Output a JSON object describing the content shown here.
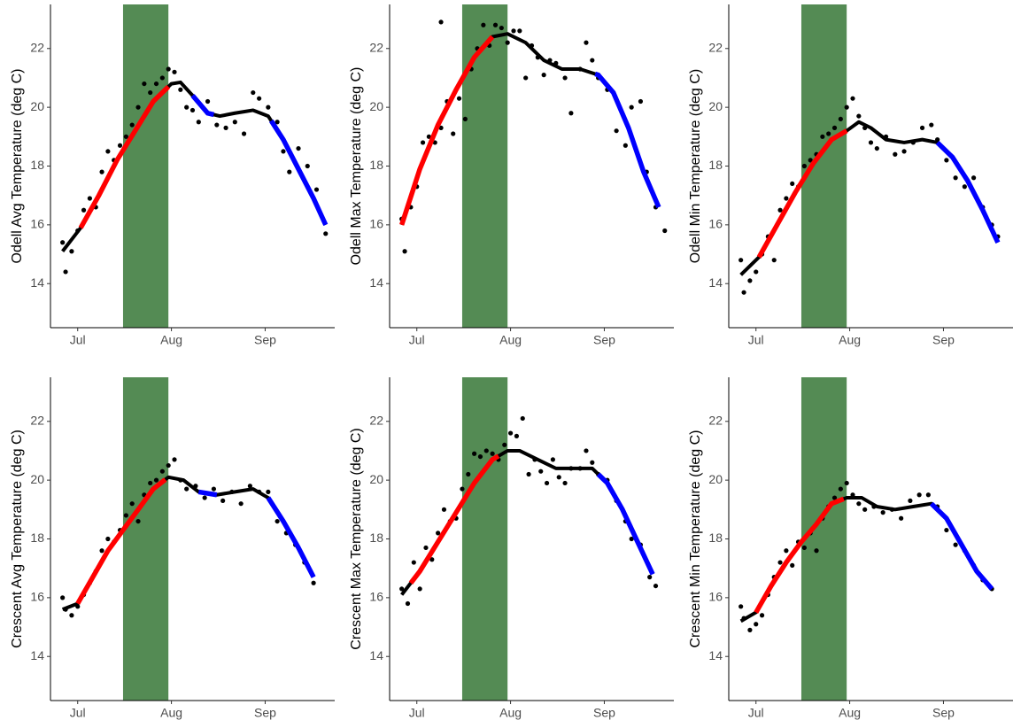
{
  "chart_data": [
    {
      "type": "scatter",
      "y_label": "Odell Avg Temperature (deg C)",
      "x": [
        177,
        178,
        180,
        182,
        184,
        186,
        188,
        190,
        192,
        194,
        196,
        198,
        200,
        202,
        204,
        206,
        208,
        210,
        212,
        214,
        216,
        218,
        220,
        222,
        225,
        228,
        231,
        234,
        237,
        240,
        242,
        245,
        248,
        250,
        252,
        255,
        258,
        261,
        264
      ],
      "values": [
        15.4,
        14.4,
        15.1,
        15.8,
        16.5,
        16.9,
        16.6,
        17.8,
        18.5,
        18.2,
        18.7,
        19.0,
        19.4,
        20.0,
        20.8,
        20.5,
        20.8,
        21.0,
        21.3,
        21.2,
        20.6,
        20.0,
        19.9,
        19.5,
        20.2,
        19.4,
        19.3,
        19.5,
        19.1,
        20.5,
        20.3,
        20.0,
        19.5,
        18.5,
        17.8,
        18.6,
        18.0,
        17.2,
        15.7
      ],
      "color": "#000000",
      "smooth": {
        "x": [
          177,
          183,
          189,
          195,
          201,
          207,
          213,
          216,
          220,
          225,
          229,
          234,
          240,
          245,
          250,
          255,
          260,
          264
        ],
        "values": [
          15.1,
          15.9,
          17.0,
          18.2,
          19.2,
          20.2,
          20.8,
          20.85,
          20.4,
          19.8,
          19.7,
          19.8,
          19.9,
          19.7,
          18.9,
          17.9,
          16.9,
          16.0
        ],
        "color": "#000000"
      },
      "highlights": [
        {
          "xlim": [
            183,
            212
          ],
          "color": "#ff0000"
        },
        {
          "xlim": [
            220,
            227
          ],
          "color": "#0000ff"
        },
        {
          "xlim": [
            246,
            264
          ],
          "color": "#0000ff"
        }
      ],
      "band": {
        "xlim": [
          197,
          212
        ],
        "color": "#548b54"
      },
      "xlim": [
        173,
        267
      ],
      "ylim": [
        12.5,
        23.5
      ],
      "xticks": [
        {
          "value": 182,
          "label": "Jul"
        },
        {
          "value": 213,
          "label": "Aug"
        },
        {
          "value": 244,
          "label": "Sep"
        }
      ],
      "yticks": [
        14,
        16,
        18,
        20,
        22
      ]
    },
    {
      "type": "scatter",
      "y_label": "Odell Max Temperature (deg C)",
      "x": [
        177,
        178,
        180,
        182,
        184,
        186,
        188,
        190,
        190,
        192,
        194,
        196,
        198,
        200,
        202,
        204,
        206,
        208,
        210,
        212,
        214,
        216,
        218,
        220,
        222,
        224,
        226,
        228,
        231,
        233,
        236,
        238,
        240,
        242,
        245,
        248,
        251,
        253,
        256,
        258,
        261,
        264
      ],
      "values": [
        16.2,
        15.1,
        16.6,
        17.3,
        18.8,
        19.0,
        18.8,
        19.3,
        22.9,
        20.2,
        19.1,
        20.3,
        19.6,
        21.3,
        22.0,
        22.8,
        22.1,
        22.8,
        22.7,
        22.2,
        22.6,
        22.6,
        21.0,
        22.1,
        21.7,
        21.1,
        21.6,
        21.5,
        21.0,
        19.8,
        21.3,
        22.2,
        21.6,
        21.0,
        20.6,
        19.2,
        18.7,
        20.0,
        20.2,
        17.8,
        16.6,
        15.8
      ],
      "color": "#000000",
      "smooth": {
        "x": [
          177,
          183,
          189,
          195,
          201,
          207,
          212,
          218,
          224,
          230,
          236,
          242,
          247,
          252,
          257,
          262
        ],
        "values": [
          16.0,
          17.9,
          19.4,
          20.6,
          21.7,
          22.4,
          22.5,
          22.2,
          21.6,
          21.3,
          21.3,
          21.1,
          20.5,
          19.3,
          17.8,
          16.6
        ],
        "color": "#000000"
      },
      "highlights": [
        {
          "xlim": [
            177,
            207
          ],
          "color": "#ff0000"
        },
        {
          "xlim": [
            241,
            262
          ],
          "color": "#0000ff"
        }
      ],
      "band": {
        "xlim": [
          197,
          212
        ],
        "color": "#548b54"
      },
      "xlim": [
        173,
        267
      ],
      "ylim": [
        12.5,
        23.5
      ],
      "xticks": [
        {
          "value": 182,
          "label": "Jul"
        },
        {
          "value": 213,
          "label": "Aug"
        },
        {
          "value": 244,
          "label": "Sep"
        }
      ],
      "yticks": [
        14,
        16,
        18,
        20,
        22
      ]
    },
    {
      "type": "scatter",
      "y_label": "Odell Min Temperature (deg C)",
      "x": [
        177,
        178,
        180,
        182,
        184,
        186,
        188,
        190,
        192,
        194,
        196,
        198,
        200,
        202,
        204,
        206,
        208,
        210,
        212,
        214,
        216,
        218,
        220,
        222,
        225,
        228,
        231,
        234,
        237,
        240,
        242,
        245,
        248,
        251,
        254,
        257,
        260,
        262
      ],
      "values": [
        14.8,
        13.7,
        14.1,
        14.4,
        15.0,
        15.6,
        14.8,
        16.5,
        16.9,
        17.4,
        17.3,
        18.0,
        18.2,
        18.4,
        19.0,
        19.1,
        19.3,
        19.6,
        20.0,
        20.3,
        19.7,
        19.3,
        18.8,
        18.6,
        19.0,
        18.4,
        18.5,
        18.8,
        19.3,
        19.4,
        18.9,
        18.2,
        17.6,
        17.3,
        17.6,
        16.6,
        16.0,
        15.6
      ],
      "color": "#000000",
      "smooth": {
        "x": [
          177,
          183,
          189,
          195,
          201,
          207,
          212,
          216,
          220,
          225,
          231,
          237,
          242,
          247,
          252,
          257,
          262
        ],
        "values": [
          14.3,
          14.9,
          16.0,
          17.1,
          18.1,
          18.9,
          19.2,
          19.5,
          19.3,
          18.9,
          18.8,
          18.9,
          18.8,
          18.3,
          17.5,
          16.5,
          15.4
        ],
        "color": "#000000"
      },
      "highlights": [
        {
          "xlim": [
            183,
            212
          ],
          "color": "#ff0000"
        },
        {
          "xlim": [
            242,
            262
          ],
          "color": "#0000ff"
        }
      ],
      "band": {
        "xlim": [
          197,
          212
        ],
        "color": "#548b54"
      },
      "xlim": [
        173,
        267
      ],
      "ylim": [
        12.5,
        23.5
      ],
      "xticks": [
        {
          "value": 182,
          "label": "Jul"
        },
        {
          "value": 213,
          "label": "Aug"
        },
        {
          "value": 244,
          "label": "Sep"
        }
      ],
      "yticks": [
        14,
        16,
        18,
        20,
        22
      ]
    },
    {
      "type": "scatter",
      "y_label": "Crescent Avg Temperature (deg C)",
      "x": [
        177,
        178,
        180,
        182,
        184,
        186,
        188,
        190,
        192,
        194,
        196,
        198,
        200,
        202,
        204,
        206,
        208,
        210,
        212,
        214,
        216,
        218,
        221,
        224,
        227,
        230,
        233,
        236,
        239,
        242,
        245,
        248,
        251,
        254,
        257,
        260
      ],
      "values": [
        16.0,
        15.6,
        15.4,
        15.7,
        16.1,
        16.5,
        16.9,
        17.6,
        18.0,
        17.9,
        18.3,
        18.8,
        19.2,
        18.6,
        19.5,
        19.9,
        20.0,
        20.3,
        20.5,
        20.7,
        20.0,
        19.7,
        19.8,
        19.4,
        19.7,
        19.3,
        19.6,
        19.2,
        19.8,
        19.6,
        19.6,
        18.6,
        18.2,
        17.8,
        17.2,
        16.5
      ],
      "color": "#000000",
      "smooth": {
        "x": [
          177,
          182,
          187,
          192,
          197,
          202,
          207,
          212,
          217,
          222,
          228,
          234,
          240,
          245,
          250,
          255,
          260
        ],
        "values": [
          15.6,
          15.8,
          16.7,
          17.6,
          18.3,
          19.0,
          19.7,
          20.1,
          20.0,
          19.6,
          19.5,
          19.6,
          19.7,
          19.4,
          18.6,
          17.7,
          16.7
        ],
        "color": "#000000"
      },
      "highlights": [
        {
          "xlim": [
            182,
            211
          ],
          "color": "#ff0000"
        },
        {
          "xlim": [
            222,
            228
          ],
          "color": "#0000ff"
        },
        {
          "xlim": [
            245,
            260
          ],
          "color": "#0000ff"
        }
      ],
      "band": {
        "xlim": [
          197,
          212
        ],
        "color": "#548b54"
      },
      "xlim": [
        173,
        267
      ],
      "ylim": [
        12.5,
        23.5
      ],
      "xticks": [
        {
          "value": 182,
          "label": "Jul"
        },
        {
          "value": 213,
          "label": "Aug"
        },
        {
          "value": 244,
          "label": "Sep"
        }
      ],
      "yticks": [
        14,
        16,
        18,
        20,
        22
      ]
    },
    {
      "type": "scatter",
      "y_label": "Crescent Max Temperature (deg C)",
      "x": [
        177,
        179,
        181,
        183,
        185,
        187,
        189,
        191,
        193,
        195,
        197,
        199,
        201,
        203,
        205,
        207,
        209,
        211,
        213,
        215,
        217,
        219,
        221,
        223,
        225,
        227,
        229,
        231,
        233,
        236,
        238,
        240,
        242,
        245,
        248,
        251,
        253,
        256,
        259,
        261
      ],
      "values": [
        16.3,
        15.8,
        17.2,
        16.3,
        17.7,
        17.3,
        18.2,
        19.0,
        18.6,
        18.7,
        19.7,
        20.2,
        20.9,
        20.8,
        21.0,
        20.9,
        20.7,
        21.2,
        21.6,
        21.5,
        22.1,
        20.2,
        20.7,
        20.3,
        19.9,
        20.7,
        20.1,
        19.9,
        20.4,
        20.4,
        21.0,
        20.6,
        20.2,
        20.0,
        19.3,
        18.6,
        18.0,
        17.8,
        16.7,
        16.4
      ],
      "color": "#000000",
      "smooth": {
        "x": [
          177,
          183,
          189,
          195,
          201,
          207,
          212,
          216,
          222,
          228,
          234,
          240,
          245,
          250,
          255,
          260
        ],
        "values": [
          16.1,
          16.9,
          17.9,
          18.9,
          19.9,
          20.7,
          21.0,
          21.0,
          20.7,
          20.4,
          20.4,
          20.4,
          19.9,
          19.0,
          17.9,
          16.8
        ],
        "color": "#000000"
      },
      "highlights": [
        {
          "xlim": [
            180,
            209
          ],
          "color": "#ff0000"
        },
        {
          "xlim": [
            242,
            260
          ],
          "color": "#0000ff"
        }
      ],
      "band": {
        "xlim": [
          197,
          212
        ],
        "color": "#548b54"
      },
      "xlim": [
        173,
        267
      ],
      "ylim": [
        12.5,
        23.5
      ],
      "xticks": [
        {
          "value": 182,
          "label": "Jul"
        },
        {
          "value": 213,
          "label": "Aug"
        },
        {
          "value": 244,
          "label": "Sep"
        }
      ],
      "yticks": [
        14,
        16,
        18,
        20,
        22
      ]
    },
    {
      "type": "scatter",
      "y_label": "Crescent Min Temperature (deg C)",
      "x": [
        177,
        178,
        180,
        182,
        184,
        186,
        188,
        190,
        192,
        194,
        196,
        198,
        200,
        202,
        204,
        206,
        208,
        210,
        212,
        214,
        216,
        218,
        221,
        224,
        227,
        230,
        233,
        236,
        239,
        242,
        245,
        248,
        251,
        254,
        257,
        260
      ],
      "values": [
        15.7,
        15.3,
        14.9,
        15.1,
        15.4,
        16.1,
        16.7,
        17.2,
        17.6,
        17.1,
        17.9,
        17.7,
        18.2,
        17.6,
        18.7,
        19.1,
        19.4,
        19.7,
        19.9,
        19.5,
        19.2,
        19.0,
        19.1,
        18.9,
        19.0,
        18.7,
        19.3,
        19.5,
        19.5,
        19.1,
        18.3,
        17.8,
        17.6,
        17.1,
        16.6,
        16.3
      ],
      "color": "#000000",
      "smooth": {
        "x": [
          177,
          182,
          187,
          192,
          197,
          202,
          207,
          212,
          217,
          222,
          228,
          234,
          240,
          245,
          250,
          255,
          260
        ],
        "values": [
          15.2,
          15.5,
          16.4,
          17.2,
          17.9,
          18.5,
          19.2,
          19.4,
          19.4,
          19.1,
          19.0,
          19.1,
          19.2,
          18.7,
          17.8,
          16.9,
          16.3
        ],
        "color": "#000000"
      },
      "highlights": [
        {
          "xlim": [
            182,
            211
          ],
          "color": "#ff0000"
        },
        {
          "xlim": [
            240,
            260
          ],
          "color": "#0000ff"
        }
      ],
      "band": {
        "xlim": [
          197,
          212
        ],
        "color": "#548b54"
      },
      "xlim": [
        173,
        267
      ],
      "ylim": [
        12.5,
        23.5
      ],
      "xticks": [
        {
          "value": 182,
          "label": "Jul"
        },
        {
          "value": 213,
          "label": "Aug"
        },
        {
          "value": 244,
          "label": "Sep"
        }
      ],
      "yticks": [
        14,
        16,
        18,
        20,
        22
      ]
    }
  ]
}
